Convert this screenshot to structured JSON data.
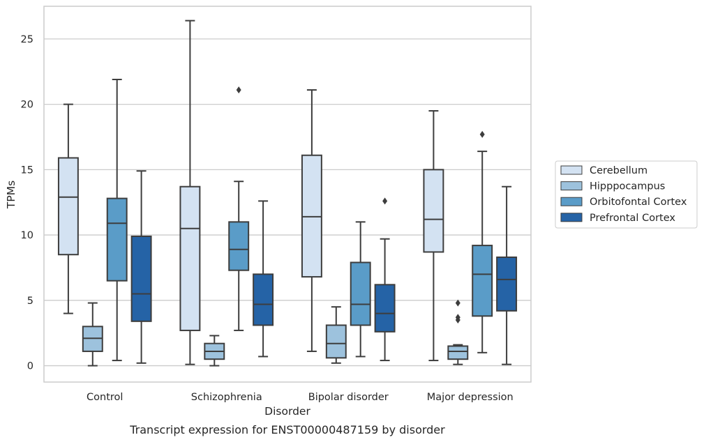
{
  "chart_data": {
    "type": "box",
    "caption": "Transcript expression for ENST00000487159 by disorder",
    "xlabel": "Disorder",
    "ylabel": "TPMs",
    "categories": [
      "Control",
      "Schizophrenia",
      "Bipolar disorder",
      "Major depression"
    ],
    "ylim": [
      -1.25,
      27.5
    ],
    "yticks": [
      0,
      5,
      10,
      15,
      20,
      25
    ],
    "grid": "horizontal",
    "legend_position": "right",
    "series": [
      {
        "name": "Cerebellum",
        "color": "#d3e2f2",
        "boxes": [
          {
            "whisker_low": 4.0,
            "q1": 8.5,
            "median": 12.9,
            "q3": 15.9,
            "whisker_high": 20.0,
            "outliers": []
          },
          {
            "whisker_low": 0.1,
            "q1": 2.7,
            "median": 10.5,
            "q3": 13.7,
            "whisker_high": 26.4,
            "outliers": []
          },
          {
            "whisker_low": 1.1,
            "q1": 6.8,
            "median": 11.4,
            "q3": 16.1,
            "whisker_high": 21.1,
            "outliers": []
          },
          {
            "whisker_low": 0.4,
            "q1": 8.7,
            "median": 11.2,
            "q3": 15.0,
            "whisker_high": 19.5,
            "outliers": []
          }
        ]
      },
      {
        "name": "Hipppocampus",
        "color": "#9dc2dd",
        "boxes": [
          {
            "whisker_low": 0.0,
            "q1": 1.1,
            "median": 2.1,
            "q3": 3.0,
            "whisker_high": 4.8,
            "outliers": []
          },
          {
            "whisker_low": 0.0,
            "q1": 0.5,
            "median": 1.1,
            "q3": 1.7,
            "whisker_high": 2.3,
            "outliers": []
          },
          {
            "whisker_low": 0.2,
            "q1": 0.6,
            "median": 1.7,
            "q3": 3.1,
            "whisker_high": 4.5,
            "outliers": []
          },
          {
            "whisker_low": 0.1,
            "q1": 0.5,
            "median": 1.1,
            "q3": 1.5,
            "whisker_high": 1.6,
            "outliers": [
              3.5,
              3.7,
              4.8
            ]
          }
        ]
      },
      {
        "name": "Orbitofontal Cortex",
        "color": "#5a9cc8",
        "boxes": [
          {
            "whisker_low": 0.4,
            "q1": 6.5,
            "median": 10.9,
            "q3": 12.8,
            "whisker_high": 21.9,
            "outliers": []
          },
          {
            "whisker_low": 2.7,
            "q1": 7.3,
            "median": 8.9,
            "q3": 11.0,
            "whisker_high": 14.1,
            "outliers": [
              21.1
            ]
          },
          {
            "whisker_low": 0.7,
            "q1": 3.1,
            "median": 4.7,
            "q3": 7.9,
            "whisker_high": 11.0,
            "outliers": []
          },
          {
            "whisker_low": 1.0,
            "q1": 3.8,
            "median": 7.0,
            "q3": 9.2,
            "whisker_high": 16.4,
            "outliers": [
              17.7
            ]
          }
        ]
      },
      {
        "name": "Prefrontal Cortex",
        "color": "#2563a6",
        "boxes": [
          {
            "whisker_low": 0.2,
            "q1": 3.4,
            "median": 5.5,
            "q3": 9.9,
            "whisker_high": 14.9,
            "outliers": []
          },
          {
            "whisker_low": 0.7,
            "q1": 3.1,
            "median": 4.7,
            "q3": 7.0,
            "whisker_high": 12.6,
            "outliers": []
          },
          {
            "whisker_low": 0.4,
            "q1": 2.6,
            "median": 4.0,
            "q3": 6.2,
            "whisker_high": 9.7,
            "outliers": [
              12.6
            ]
          },
          {
            "whisker_low": 0.1,
            "q1": 4.2,
            "median": 6.6,
            "q3": 8.3,
            "whisker_high": 13.7,
            "outliers": []
          }
        ]
      }
    ]
  }
}
